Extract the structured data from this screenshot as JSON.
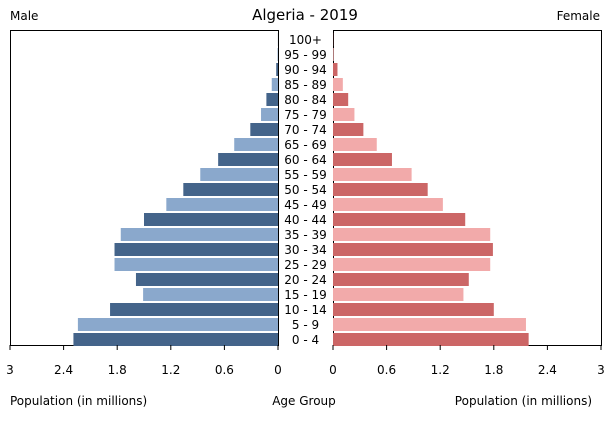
{
  "chart_data": {
    "type": "bar",
    "orientation": "horizontal",
    "layout": "population-pyramid",
    "title": "Algeria - 2019",
    "left_label": "Male",
    "right_label": "Female",
    "center_axis_label": "Age Group",
    "xlabel_left": "Population (in millions)",
    "xlabel_right": "Population (in millions)",
    "xlim": [
      0,
      3
    ],
    "ticks": [
      "3",
      "2.4",
      "1.8",
      "1.2",
      "0.6",
      "0",
      "0",
      "0.6",
      "1.2",
      "1.8",
      "2.4",
      "3"
    ],
    "tick_values_left": [
      3,
      2.4,
      1.8,
      1.2,
      0.6,
      0
    ],
    "tick_values_right": [
      0,
      0.6,
      1.2,
      1.8,
      2.4,
      3
    ],
    "categories": [
      "100+",
      "95 - 99",
      "90 - 94",
      "85 - 89",
      "80 - 84",
      "75 - 79",
      "70 - 74",
      "65 - 69",
      "60 - 64",
      "55 - 59",
      "50 - 54",
      "45 - 49",
      "40 - 44",
      "35 - 39",
      "30 - 34",
      "25 - 29",
      "20 - 24",
      "15 - 19",
      "10 - 14",
      "5 - 9",
      "0 - 4"
    ],
    "series": [
      {
        "name": "Male",
        "values": [
          0.001,
          0.005,
          0.02,
          0.07,
          0.13,
          0.19,
          0.31,
          0.49,
          0.67,
          0.87,
          1.06,
          1.25,
          1.5,
          1.76,
          1.83,
          1.83,
          1.59,
          1.51,
          1.88,
          2.24,
          2.29
        ]
      },
      {
        "name": "Female",
        "values": [
          0.002,
          0.008,
          0.05,
          0.11,
          0.17,
          0.24,
          0.34,
          0.49,
          0.66,
          0.88,
          1.06,
          1.23,
          1.48,
          1.76,
          1.79,
          1.76,
          1.52,
          1.46,
          1.8,
          2.16,
          2.19
        ]
      }
    ],
    "colors": {
      "male_dark": "#44648a",
      "male_light": "#8aa8cc",
      "female_dark": "#cc6666",
      "female_light": "#f2aaaa",
      "axis": "#000000",
      "text": "#000000"
    }
  }
}
